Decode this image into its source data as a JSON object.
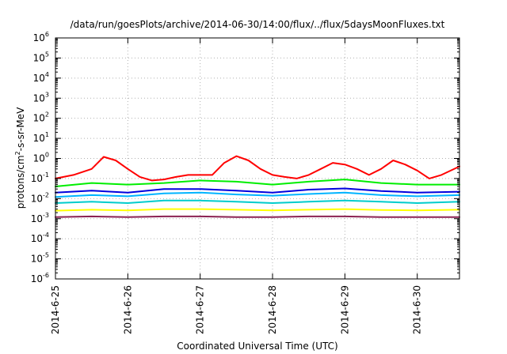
{
  "chart_data": {
    "type": "line",
    "title": "/data/run/goesPlots/archive/2014-06-30/14:00/flux/../flux/5daysMoonFluxes.txt",
    "xlabel": "Coordinated Universal Time (UTC)",
    "ylabel": {
      "base": "protons/cm",
      "sup": "2",
      "rest": "-s-sr-MeV"
    },
    "y_scale": "log",
    "ylim": [
      1e-06,
      1000000.0
    ],
    "y_ticks": [
      {
        "value": 1e-06,
        "base": "10",
        "exp": "-6"
      },
      {
        "value": 1e-05,
        "base": "10",
        "exp": "-5"
      },
      {
        "value": 0.0001,
        "base": "10",
        "exp": "-4"
      },
      {
        "value": 0.001,
        "base": "10",
        "exp": "-3"
      },
      {
        "value": 0.01,
        "base": "10",
        "exp": "-2"
      },
      {
        "value": 0.1,
        "base": "10",
        "exp": "-1"
      },
      {
        "value": 1,
        "base": "10",
        "exp": "0"
      },
      {
        "value": 10,
        "base": "10",
        "exp": "1"
      },
      {
        "value": 100,
        "base": "10",
        "exp": "2"
      },
      {
        "value": 1000,
        "base": "10",
        "exp": "3"
      },
      {
        "value": 10000,
        "base": "10",
        "exp": "4"
      },
      {
        "value": 100000,
        "base": "10",
        "exp": "5"
      },
      {
        "value": 1000000,
        "base": "10",
        "exp": "6"
      }
    ],
    "xlim": [
      "2014-06-25T00:00",
      "2014-06-30T14:00"
    ],
    "x_ticks": [
      "2014-6-25",
      "2014-6-26",
      "2014-6-27",
      "2014-6-28",
      "2014-6-29",
      "2014-6-30"
    ],
    "grid": true,
    "legend": "none",
    "series": [
      {
        "color": "#ff0000",
        "x": [
          "2014-06-25T00:00",
          "2014-06-25T06:00",
          "2014-06-25T12:00",
          "2014-06-25T16:00",
          "2014-06-25T20:00",
          "2014-06-26T00:00",
          "2014-06-26T04:00",
          "2014-06-26T08:00",
          "2014-06-26T12:00",
          "2014-06-26T16:00",
          "2014-06-26T20:00",
          "2014-06-27T00:00",
          "2014-06-27T04:00",
          "2014-06-27T08:00",
          "2014-06-27T12:00",
          "2014-06-27T16:00",
          "2014-06-27T20:00",
          "2014-06-28T00:00",
          "2014-06-28T04:00",
          "2014-06-28T08:00",
          "2014-06-28T12:00",
          "2014-06-28T16:00",
          "2014-06-28T20:00",
          "2014-06-29T00:00",
          "2014-06-29T04:00",
          "2014-06-29T08:00",
          "2014-06-29T12:00",
          "2014-06-29T16:00",
          "2014-06-29T20:00",
          "2014-06-30T00:00",
          "2014-06-30T04:00",
          "2014-06-30T08:00",
          "2014-06-30T14:00"
        ],
        "y": [
          0.1,
          0.15,
          0.3,
          1.2,
          0.8,
          0.3,
          0.12,
          0.08,
          0.09,
          0.12,
          0.15,
          0.15,
          0.15,
          0.6,
          1.3,
          0.8,
          0.3,
          0.15,
          0.12,
          0.1,
          0.15,
          0.3,
          0.6,
          0.5,
          0.3,
          0.15,
          0.3,
          0.8,
          0.5,
          0.25,
          0.1,
          0.15,
          0.4
        ]
      },
      {
        "color": "#00ee00",
        "x": [
          "2014-06-25T00:00",
          "2014-06-25T12:00",
          "2014-06-26T00:00",
          "2014-06-26T12:00",
          "2014-06-27T00:00",
          "2014-06-27T12:00",
          "2014-06-28T00:00",
          "2014-06-28T12:00",
          "2014-06-29T00:00",
          "2014-06-29T12:00",
          "2014-06-30T00:00",
          "2014-06-30T14:00"
        ],
        "y": [
          0.04,
          0.06,
          0.05,
          0.06,
          0.08,
          0.07,
          0.05,
          0.07,
          0.09,
          0.06,
          0.05,
          0.05
        ]
      },
      {
        "color": "#00b4ff",
        "x": [
          "2014-06-25T00:00",
          "2014-06-25T12:00",
          "2014-06-26T00:00",
          "2014-06-26T12:00",
          "2014-06-27T00:00",
          "2014-06-27T12:00",
          "2014-06-28T00:00",
          "2014-06-28T12:00",
          "2014-06-29T00:00",
          "2014-06-29T12:00",
          "2014-06-30T00:00",
          "2014-06-30T14:00"
        ],
        "y": [
          0.012,
          0.015,
          0.013,
          0.018,
          0.02,
          0.016,
          0.014,
          0.017,
          0.02,
          0.015,
          0.013,
          0.015
        ]
      },
      {
        "color": "#0000dd",
        "x": [
          "2014-06-25T00:00",
          "2014-06-25T12:00",
          "2014-06-26T00:00",
          "2014-06-26T12:00",
          "2014-06-27T00:00",
          "2014-06-27T12:00",
          "2014-06-28T00:00",
          "2014-06-28T12:00",
          "2014-06-29T00:00",
          "2014-06-29T12:00",
          "2014-06-30T00:00",
          "2014-06-30T14:00"
        ],
        "y": [
          0.02,
          0.025,
          0.02,
          0.03,
          0.03,
          0.025,
          0.02,
          0.028,
          0.032,
          0.024,
          0.02,
          0.022
        ]
      },
      {
        "color": "#00cccc",
        "x": [
          "2014-06-25T00:00",
          "2014-06-25T12:00",
          "2014-06-26T00:00",
          "2014-06-26T12:00",
          "2014-06-27T00:00",
          "2014-06-27T12:00",
          "2014-06-28T00:00",
          "2014-06-28T12:00",
          "2014-06-29T00:00",
          "2014-06-29T12:00",
          "2014-06-30T00:00",
          "2014-06-30T14:00"
        ],
        "y": [
          0.006,
          0.007,
          0.006,
          0.008,
          0.008,
          0.007,
          0.006,
          0.007,
          0.008,
          0.007,
          0.006,
          0.007
        ]
      },
      {
        "color": "#ffff00",
        "x": [
          "2014-06-25T00:00",
          "2014-06-25T12:00",
          "2014-06-26T00:00",
          "2014-06-26T12:00",
          "2014-06-27T00:00",
          "2014-06-27T12:00",
          "2014-06-28T00:00",
          "2014-06-28T12:00",
          "2014-06-29T00:00",
          "2014-06-29T12:00",
          "2014-06-30T00:00",
          "2014-06-30T14:00"
        ],
        "y": [
          0.0025,
          0.0028,
          0.0026,
          0.003,
          0.003,
          0.0028,
          0.0026,
          0.0028,
          0.003,
          0.0027,
          0.0026,
          0.0028
        ]
      },
      {
        "color": "#8b2252",
        "x": [
          "2014-06-25T00:00",
          "2014-06-25T12:00",
          "2014-06-26T00:00",
          "2014-06-26T12:00",
          "2014-06-27T00:00",
          "2014-06-27T12:00",
          "2014-06-28T00:00",
          "2014-06-28T12:00",
          "2014-06-29T00:00",
          "2014-06-29T12:00",
          "2014-06-30T00:00",
          "2014-06-30T14:00"
        ],
        "y": [
          0.0012,
          0.0013,
          0.0012,
          0.0013,
          0.0013,
          0.0012,
          0.0012,
          0.0013,
          0.0013,
          0.0012,
          0.0012,
          0.0012
        ]
      }
    ]
  }
}
